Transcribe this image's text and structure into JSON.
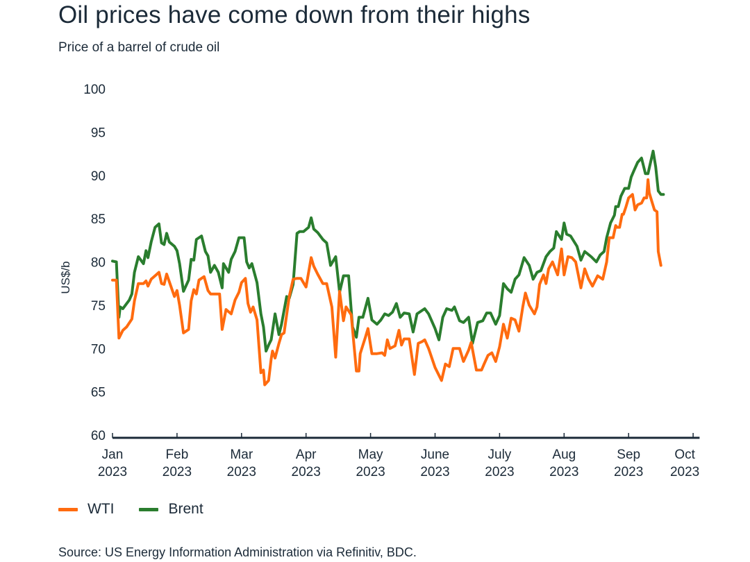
{
  "chart_data": {
    "type": "line",
    "title": "Oil prices have come down from their highs",
    "subtitle": "Price of a barrel of crude oil",
    "xlabel": "",
    "ylabel": "US$/b",
    "ylim": [
      60,
      100
    ],
    "yticks": [
      60,
      65,
      70,
      75,
      80,
      85,
      90,
      95,
      100
    ],
    "xlim": [
      0,
      9.1
    ],
    "x_unit": "months since Jan 2023",
    "xticks": [
      {
        "x": 0,
        "label": "Jan",
        "sub": "2023"
      },
      {
        "x": 1,
        "label": "Feb",
        "sub": "2023"
      },
      {
        "x": 2,
        "label": "Mar",
        "sub": "2023"
      },
      {
        "x": 3,
        "label": "Apr",
        "sub": "2023"
      },
      {
        "x": 4,
        "label": "May",
        "sub": "2023"
      },
      {
        "x": 5,
        "label": "June",
        "sub": "2023"
      },
      {
        "x": 6,
        "label": "July",
        "sub": "2023"
      },
      {
        "x": 7,
        "label": "Aug",
        "sub": "2023"
      },
      {
        "x": 8,
        "label": "Sep",
        "sub": "2023"
      },
      {
        "x": 9,
        "label": "Oct",
        "sub": "2023"
      }
    ],
    "grid": false,
    "legend_position": "bottom-left",
    "source": "Source: US Energy Information Administration via Refinitiv, BDC.",
    "series": [
      {
        "name": "WTI",
        "color": "#ff6b0f",
        "points": [
          [
            0.0,
            77.9
          ],
          [
            0.06,
            77.9
          ],
          [
            0.1,
            71.2
          ],
          [
            0.16,
            72.1
          ],
          [
            0.22,
            72.5
          ],
          [
            0.3,
            73.4
          ],
          [
            0.34,
            75.5
          ],
          [
            0.4,
            77.5
          ],
          [
            0.48,
            77.5
          ],
          [
            0.52,
            77.8
          ],
          [
            0.55,
            77.2
          ],
          [
            0.6,
            78.0
          ],
          [
            0.66,
            78.4
          ],
          [
            0.72,
            78.8
          ],
          [
            0.76,
            77.5
          ],
          [
            0.8,
            77.4
          ],
          [
            0.84,
            78.6
          ],
          [
            0.9,
            77.3
          ],
          [
            0.96,
            76.0
          ],
          [
            1.0,
            76.7
          ],
          [
            1.04,
            75.0
          ],
          [
            1.1,
            71.8
          ],
          [
            1.18,
            72.2
          ],
          [
            1.22,
            75.5
          ],
          [
            1.26,
            76.8
          ],
          [
            1.3,
            76.3
          ],
          [
            1.34,
            77.9
          ],
          [
            1.42,
            78.3
          ],
          [
            1.48,
            76.7
          ],
          [
            1.52,
            76.3
          ],
          [
            1.66,
            76.3
          ],
          [
            1.7,
            72.2
          ],
          [
            1.76,
            74.5
          ],
          [
            1.84,
            74.0
          ],
          [
            1.9,
            75.6
          ],
          [
            1.96,
            76.5
          ],
          [
            2.0,
            77.6
          ],
          [
            2.06,
            78.1
          ],
          [
            2.1,
            75.2
          ],
          [
            2.14,
            74.2
          ],
          [
            2.18,
            74.8
          ],
          [
            2.24,
            73.3
          ],
          [
            2.3,
            67.2
          ],
          [
            2.34,
            67.5
          ],
          [
            2.36,
            65.8
          ],
          [
            2.42,
            66.3
          ],
          [
            2.46,
            68.8
          ],
          [
            2.48,
            69.7
          ],
          [
            2.52,
            68.9
          ],
          [
            2.58,
            70.6
          ],
          [
            2.62,
            71.6
          ],
          [
            2.66,
            71.8
          ],
          [
            2.74,
            76.0
          ],
          [
            2.8,
            78.0
          ],
          [
            2.86,
            78.1
          ],
          [
            2.92,
            78.1
          ],
          [
            3.0,
            77.1
          ],
          [
            3.08,
            80.5
          ],
          [
            3.12,
            79.5
          ],
          [
            3.18,
            78.6
          ],
          [
            3.26,
            77.5
          ],
          [
            3.32,
            77.5
          ],
          [
            3.4,
            74.8
          ],
          [
            3.46,
            69.0
          ],
          [
            3.52,
            76.6
          ],
          [
            3.58,
            73.2
          ],
          [
            3.62,
            74.8
          ],
          [
            3.7,
            73.9
          ],
          [
            3.78,
            67.4
          ],
          [
            3.82,
            67.4
          ],
          [
            3.84,
            69.4
          ],
          [
            3.92,
            71.3
          ],
          [
            3.96,
            72.3
          ],
          [
            4.02,
            69.4
          ],
          [
            4.1,
            69.4
          ],
          [
            4.18,
            69.5
          ],
          [
            4.22,
            69.2
          ],
          [
            4.26,
            71.0
          ],
          [
            4.3,
            70.0
          ],
          [
            4.38,
            70.3
          ],
          [
            4.44,
            72.1
          ],
          [
            4.48,
            70.4
          ],
          [
            4.52,
            71.1
          ],
          [
            4.6,
            71.1
          ],
          [
            4.68,
            67.0
          ],
          [
            4.74,
            70.6
          ],
          [
            4.8,
            70.8
          ],
          [
            4.84,
            71.0
          ],
          [
            4.9,
            70.0
          ],
          [
            5.0,
            67.8
          ],
          [
            5.1,
            66.3
          ],
          [
            5.16,
            68.2
          ],
          [
            5.22,
            67.9
          ],
          [
            5.28,
            70.0
          ],
          [
            5.38,
            70.0
          ],
          [
            5.44,
            68.5
          ],
          [
            5.52,
            69.8
          ],
          [
            5.56,
            70.7
          ],
          [
            5.64,
            67.5
          ],
          [
            5.72,
            67.5
          ],
          [
            5.76,
            68.2
          ],
          [
            5.82,
            69.2
          ],
          [
            5.88,
            69.5
          ],
          [
            5.94,
            68.5
          ],
          [
            6.0,
            70.2
          ],
          [
            6.06,
            72.8
          ],
          [
            6.12,
            71.2
          ],
          [
            6.18,
            73.5
          ],
          [
            6.24,
            73.3
          ],
          [
            6.3,
            72.0
          ],
          [
            6.36,
            74.8
          ],
          [
            6.4,
            76.4
          ],
          [
            6.46,
            75.0
          ],
          [
            6.54,
            74.0
          ],
          [
            6.58,
            74.8
          ],
          [
            6.62,
            77.4
          ],
          [
            6.68,
            78.5
          ],
          [
            6.72,
            77.5
          ],
          [
            6.76,
            79.2
          ],
          [
            6.82,
            80.0
          ],
          [
            6.9,
            78.5
          ],
          [
            6.96,
            81.5
          ],
          [
            7.0,
            78.5
          ],
          [
            7.06,
            80.6
          ],
          [
            7.12,
            80.5
          ],
          [
            7.18,
            80.0
          ],
          [
            7.26,
            77.0
          ],
          [
            7.32,
            79.2
          ],
          [
            7.38,
            78.0
          ],
          [
            7.44,
            77.2
          ],
          [
            7.52,
            78.4
          ],
          [
            7.6,
            78.0
          ],
          [
            7.66,
            80.0
          ],
          [
            7.7,
            82.8
          ],
          [
            7.76,
            82.8
          ],
          [
            7.8,
            84.2
          ],
          [
            7.82,
            84.0
          ],
          [
            7.86,
            84.0
          ],
          [
            7.9,
            85.5
          ],
          [
            7.92,
            85.5
          ],
          [
            7.96,
            86.4
          ],
          [
            8.0,
            87.4
          ],
          [
            8.06,
            87.8
          ],
          [
            8.1,
            86.0
          ],
          [
            8.14,
            86.6
          ],
          [
            8.2,
            86.8
          ],
          [
            8.24,
            87.4
          ],
          [
            8.28,
            87.4
          ],
          [
            8.3,
            89.5
          ],
          [
            8.32,
            88.0
          ],
          [
            8.36,
            87.0
          ],
          [
            8.4,
            86.0
          ],
          [
            8.44,
            85.8
          ],
          [
            8.46,
            81.2
          ],
          [
            8.5,
            79.6
          ]
        ]
      },
      {
        "name": "Brent",
        "color": "#2a7d2e",
        "points": [
          [
            0.0,
            80.1
          ],
          [
            0.06,
            80.0
          ],
          [
            0.1,
            73.6
          ],
          [
            0.12,
            74.8
          ],
          [
            0.16,
            74.6
          ],
          [
            0.2,
            75.0
          ],
          [
            0.26,
            75.6
          ],
          [
            0.3,
            76.3
          ],
          [
            0.34,
            78.8
          ],
          [
            0.4,
            80.6
          ],
          [
            0.48,
            79.8
          ],
          [
            0.52,
            81.3
          ],
          [
            0.55,
            80.5
          ],
          [
            0.6,
            82.3
          ],
          [
            0.66,
            84.0
          ],
          [
            0.72,
            84.4
          ],
          [
            0.76,
            82.2
          ],
          [
            0.8,
            82.0
          ],
          [
            0.84,
            83.3
          ],
          [
            0.88,
            82.3
          ],
          [
            0.96,
            81.8
          ],
          [
            1.0,
            81.3
          ],
          [
            1.04,
            79.8
          ],
          [
            1.1,
            76.6
          ],
          [
            1.18,
            77.9
          ],
          [
            1.22,
            80.3
          ],
          [
            1.26,
            80.2
          ],
          [
            1.3,
            82.6
          ],
          [
            1.38,
            83.0
          ],
          [
            1.44,
            81.2
          ],
          [
            1.48,
            80.7
          ],
          [
            1.52,
            78.8
          ],
          [
            1.58,
            79.6
          ],
          [
            1.64,
            78.8
          ],
          [
            1.7,
            77.0
          ],
          [
            1.72,
            79.8
          ],
          [
            1.8,
            78.8
          ],
          [
            1.84,
            80.3
          ],
          [
            1.9,
            81.2
          ],
          [
            1.96,
            82.8
          ],
          [
            2.04,
            82.8
          ],
          [
            2.08,
            80.0
          ],
          [
            2.12,
            79.3
          ],
          [
            2.16,
            79.8
          ],
          [
            2.24,
            77.6
          ],
          [
            2.3,
            74.0
          ],
          [
            2.34,
            72.5
          ],
          [
            2.38,
            69.7
          ],
          [
            2.42,
            70.4
          ],
          [
            2.46,
            71.0
          ],
          [
            2.52,
            74.0
          ],
          [
            2.58,
            71.6
          ],
          [
            2.62,
            72.8
          ],
          [
            2.7,
            76.0
          ],
          [
            2.74,
            75.8
          ],
          [
            2.8,
            77.4
          ],
          [
            2.86,
            83.3
          ],
          [
            2.9,
            83.5
          ],
          [
            2.96,
            83.5
          ],
          [
            3.04,
            84.0
          ],
          [
            3.08,
            85.1
          ],
          [
            3.12,
            83.8
          ],
          [
            3.18,
            83.4
          ],
          [
            3.26,
            82.6
          ],
          [
            3.32,
            82.2
          ],
          [
            3.38,
            79.6
          ],
          [
            3.46,
            80.6
          ],
          [
            3.52,
            76.5
          ],
          [
            3.58,
            78.4
          ],
          [
            3.66,
            78.4
          ],
          [
            3.72,
            72.5
          ],
          [
            3.78,
            71.3
          ],
          [
            3.82,
            73.6
          ],
          [
            3.88,
            73.6
          ],
          [
            3.96,
            75.8
          ],
          [
            4.02,
            73.3
          ],
          [
            4.1,
            72.8
          ],
          [
            4.16,
            73.3
          ],
          [
            4.22,
            74.0
          ],
          [
            4.28,
            73.8
          ],
          [
            4.34,
            74.2
          ],
          [
            4.4,
            75.2
          ],
          [
            4.46,
            73.6
          ],
          [
            4.52,
            74.1
          ],
          [
            4.6,
            74.0
          ],
          [
            4.66,
            71.9
          ],
          [
            4.72,
            74.0
          ],
          [
            4.8,
            74.4
          ],
          [
            4.84,
            74.6
          ],
          [
            4.9,
            74.0
          ],
          [
            5.0,
            72.3
          ],
          [
            5.06,
            71.0
          ],
          [
            5.12,
            73.6
          ],
          [
            5.18,
            74.6
          ],
          [
            5.26,
            74.4
          ],
          [
            5.3,
            74.8
          ],
          [
            5.38,
            73.2
          ],
          [
            5.44,
            73.0
          ],
          [
            5.52,
            73.6
          ],
          [
            5.58,
            70.6
          ],
          [
            5.66,
            73.0
          ],
          [
            5.74,
            73.2
          ],
          [
            5.8,
            74.1
          ],
          [
            5.86,
            74.1
          ],
          [
            5.94,
            72.8
          ],
          [
            6.0,
            73.8
          ],
          [
            6.06,
            77.5
          ],
          [
            6.12,
            76.9
          ],
          [
            6.18,
            76.5
          ],
          [
            6.24,
            78.0
          ],
          [
            6.3,
            78.5
          ],
          [
            6.38,
            80.5
          ],
          [
            6.46,
            79.6
          ],
          [
            6.52,
            78.0
          ],
          [
            6.58,
            78.8
          ],
          [
            6.64,
            79.0
          ],
          [
            6.72,
            80.6
          ],
          [
            6.78,
            81.2
          ],
          [
            6.84,
            81.6
          ],
          [
            6.88,
            83.5
          ],
          [
            6.96,
            82.6
          ],
          [
            7.0,
            84.5
          ],
          [
            7.04,
            83.2
          ],
          [
            7.1,
            83.0
          ],
          [
            7.2,
            81.8
          ],
          [
            7.26,
            80.2
          ],
          [
            7.32,
            81.2
          ],
          [
            7.42,
            80.6
          ],
          [
            7.5,
            80.0
          ],
          [
            7.56,
            80.8
          ],
          [
            7.62,
            81.2
          ],
          [
            7.66,
            82.8
          ],
          [
            7.72,
            84.5
          ],
          [
            7.78,
            85.4
          ],
          [
            7.8,
            86.4
          ],
          [
            7.84,
            86.4
          ],
          [
            7.88,
            87.6
          ],
          [
            7.94,
            88.5
          ],
          [
            8.0,
            88.5
          ],
          [
            8.04,
            89.8
          ],
          [
            8.08,
            90.5
          ],
          [
            8.14,
            91.5
          ],
          [
            8.2,
            92.0
          ],
          [
            8.26,
            90.2
          ],
          [
            8.3,
            90.2
          ],
          [
            8.34,
            91.5
          ],
          [
            8.38,
            92.8
          ],
          [
            8.42,
            91.0
          ],
          [
            8.46,
            88.2
          ],
          [
            8.5,
            87.8
          ],
          [
            8.54,
            87.8
          ]
        ]
      }
    ]
  }
}
